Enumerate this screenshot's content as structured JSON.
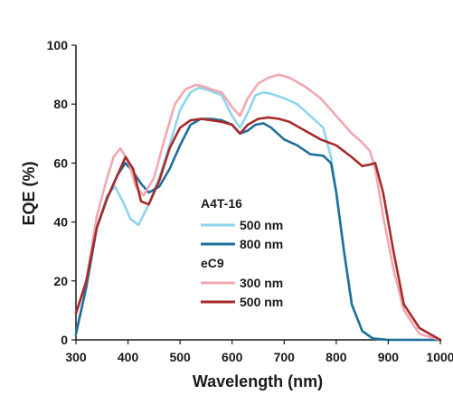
{
  "chart_data": {
    "type": "line",
    "title": "",
    "xlabel": "Wavelength (nm)",
    "ylabel": "EQE (%)",
    "xlim": [
      300,
      1000
    ],
    "ylim": [
      0,
      100
    ],
    "xticks": [
      "300",
      "400",
      "500",
      "600",
      "700",
      "800",
      "900",
      "1000"
    ],
    "yticks": [
      "0",
      "20",
      "40",
      "60",
      "80",
      "100"
    ],
    "grid": false,
    "legend_position": "center",
    "legend_groups": [
      {
        "heading": "A4T-16",
        "entries": [
          "500 nm",
          "800 nm"
        ]
      },
      {
        "heading": "eC9",
        "entries": [
          "300 nm",
          "500 nm"
        ]
      }
    ],
    "series": [
      {
        "name": "500 nm",
        "group": "A4T-16",
        "color": "#8fd4ee",
        "x": [
          300,
          320,
          340,
          360,
          375,
          390,
          405,
          420,
          440,
          460,
          480,
          500,
          520,
          535,
          550,
          565,
          580,
          600,
          615,
          630,
          645,
          660,
          675,
          700,
          725,
          750,
          775,
          790,
          800,
          815,
          830,
          850,
          870,
          900,
          950,
          1000
        ],
        "y": [
          2,
          18,
          38,
          49,
          52,
          47,
          41,
          39,
          46,
          55,
          66,
          78,
          84,
          85.5,
          85,
          84,
          83,
          76,
          72,
          77,
          83,
          84,
          83.5,
          82,
          80,
          76,
          72,
          62,
          50,
          30,
          12,
          3,
          0.5,
          0,
          0,
          0
        ]
      },
      {
        "name": "800 nm",
        "group": "A4T-16",
        "color": "#1e6f9a",
        "x": [
          300,
          320,
          340,
          360,
          380,
          395,
          410,
          425,
          440,
          460,
          480,
          500,
          520,
          540,
          560,
          580,
          600,
          615,
          630,
          645,
          660,
          675,
          700,
          725,
          750,
          775,
          790,
          800,
          815,
          830,
          850,
          870,
          900,
          950,
          1000
        ],
        "y": [
          2,
          18,
          38,
          48,
          56,
          60,
          57,
          53,
          50,
          52,
          58,
          66,
          73,
          75,
          75,
          74.5,
          73,
          70,
          71,
          73,
          73.5,
          72,
          68,
          66,
          63,
          62.5,
          60,
          50,
          30,
          12,
          3,
          0.5,
          0,
          0,
          0
        ]
      },
      {
        "name": "300 nm",
        "group": "eC9",
        "color": "#f0a8b0",
        "x": [
          300,
          320,
          340,
          360,
          372,
          385,
          400,
          415,
          430,
          450,
          470,
          490,
          510,
          530,
          545,
          560,
          580,
          600,
          615,
          630,
          650,
          670,
          690,
          710,
          740,
          770,
          800,
          830,
          850,
          865,
          875,
          890,
          910,
          930,
          960,
          1000
        ],
        "y": [
          9,
          20,
          42,
          55,
          62,
          65,
          61,
          52,
          49,
          55,
          68,
          80,
          85,
          86.5,
          86,
          85,
          84,
          79,
          76,
          82,
          87,
          89,
          90,
          89,
          86,
          82,
          76,
          70,
          67,
          64,
          58,
          42,
          24,
          10,
          2,
          0
        ]
      },
      {
        "name": "500 nm",
        "group": "eC9",
        "color": "#a82a2a",
        "x": [
          300,
          320,
          340,
          360,
          380,
          395,
          410,
          425,
          440,
          460,
          480,
          500,
          520,
          540,
          560,
          580,
          600,
          615,
          630,
          650,
          670,
          690,
          710,
          740,
          770,
          800,
          830,
          850,
          865,
          875,
          890,
          910,
          930,
          960,
          1000
        ],
        "y": [
          9,
          20,
          38,
          48,
          56,
          62,
          58,
          47,
          46,
          54,
          65,
          72,
          74.5,
          75,
          74.5,
          74,
          73,
          70,
          73,
          75,
          75.5,
          75,
          74,
          71,
          68,
          66,
          62,
          59,
          59.5,
          60,
          50,
          30,
          12,
          4,
          0
        ]
      }
    ]
  }
}
